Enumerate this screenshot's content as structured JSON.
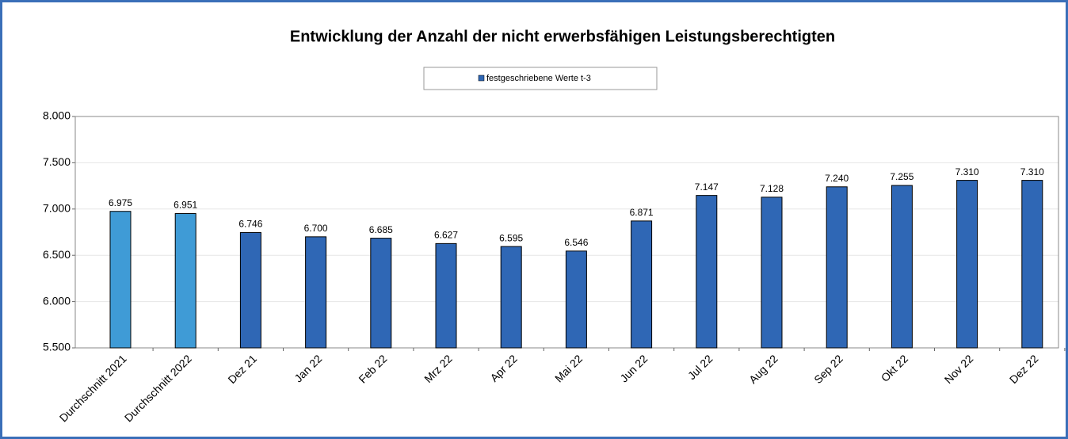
{
  "chart_data": {
    "type": "bar",
    "title": "Entwicklung der Anzahl der nicht erwerbsfähigen Leistungsberechtigten",
    "categories": [
      "Durchschnitt 2021",
      "Durchschnitt 2022",
      "Dez 21",
      "Jan 22",
      "Feb 22",
      "Mrz 22",
      "Apr 22",
      "Mai 22",
      "Jun 22",
      "Jul 22",
      "Aug 22",
      "Sep 22",
      "Okt 22",
      "Nov 22",
      "Dez 22"
    ],
    "series": [
      {
        "name": "festgeschriebene Werte t-3",
        "color": "#2f67b5",
        "colors": [
          "#3f9bd6",
          "#3f9bd6",
          "#2f67b5",
          "#2f67b5",
          "#2f67b5",
          "#2f67b5",
          "#2f67b5",
          "#2f67b5",
          "#2f67b5",
          "#2f67b5",
          "#2f67b5",
          "#2f67b5",
          "#2f67b5",
          "#2f67b5",
          "#2f67b5"
        ],
        "values": [
          6975,
          6951,
          6746,
          6700,
          6685,
          6627,
          6595,
          6546,
          6871,
          7147,
          7128,
          7240,
          7255,
          7310,
          7310
        ],
        "value_labels": [
          "6.975",
          "6.951",
          "6.746",
          "6.700",
          "6.685",
          "6.627",
          "6.595",
          "6.546",
          "6.871",
          "7.147",
          "7.128",
          "7.240",
          "7.255",
          "7.310",
          "7.310"
        ]
      }
    ],
    "ylim": [
      5500,
      8000
    ],
    "yticks": [
      {
        "value": 5500,
        "label": "5.500"
      },
      {
        "value": 6000,
        "label": "6.000"
      },
      {
        "value": 6500,
        "label": "6.500"
      },
      {
        "value": 7000,
        "label": "7.000"
      },
      {
        "value": 7500,
        "label": "7.500"
      },
      {
        "value": 8000,
        "label": "8.000"
      }
    ],
    "grid": true,
    "legend": "top"
  }
}
